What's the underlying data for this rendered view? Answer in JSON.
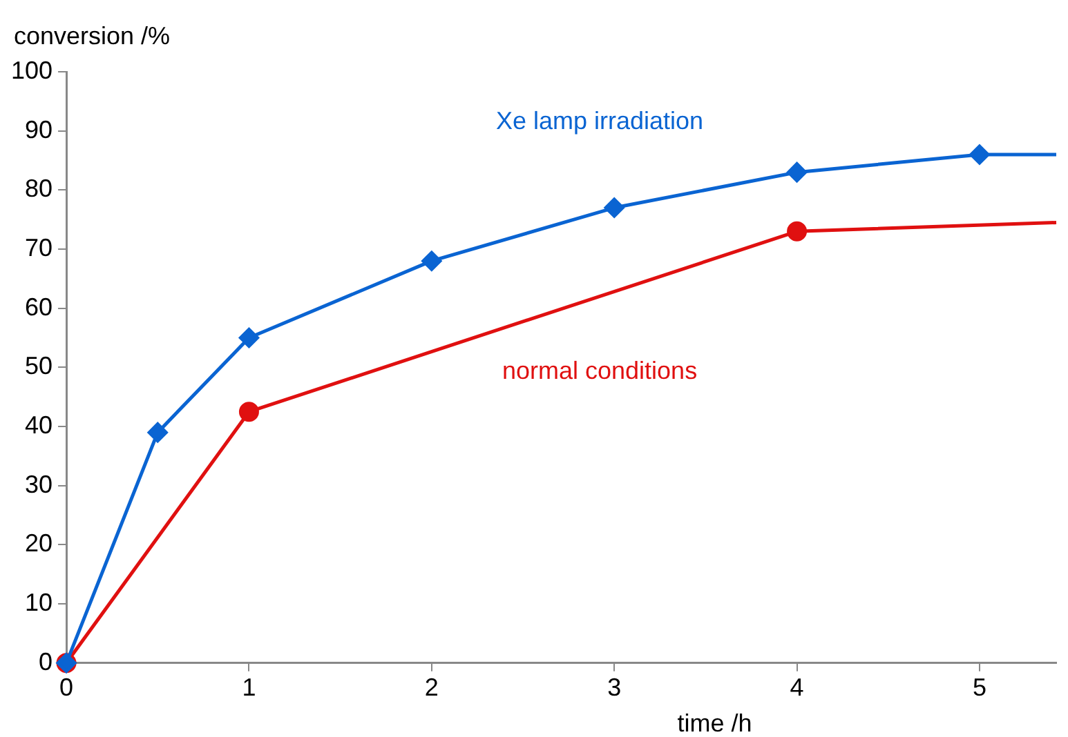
{
  "chart_data": {
    "type": "line",
    "xlabel": "time /h",
    "ylabel": "conversion /%",
    "xlim": [
      0,
      5.42
    ],
    "xticks": [
      0,
      1,
      2,
      3,
      4,
      5
    ],
    "ylim": [
      0,
      100
    ],
    "yticks": [
      0,
      10,
      20,
      30,
      40,
      50,
      60,
      70,
      80,
      90,
      100
    ],
    "grid": false,
    "legend": false,
    "line_style": "solid",
    "series": [
      {
        "name": "Xe lamp irradiation",
        "color": "#0a64d2",
        "marker": "diamond",
        "x": [
          0,
          0.5,
          1,
          2,
          3,
          4,
          5,
          5.42
        ],
        "values": [
          0,
          39,
          55,
          68,
          77,
          83,
          86,
          86
        ]
      },
      {
        "name": "normal conditions",
        "color": "#e01010",
        "marker": "circle",
        "x": [
          0,
          1,
          4,
          5.42
        ],
        "values": [
          0,
          42.5,
          73,
          74.5
        ]
      }
    ]
  }
}
